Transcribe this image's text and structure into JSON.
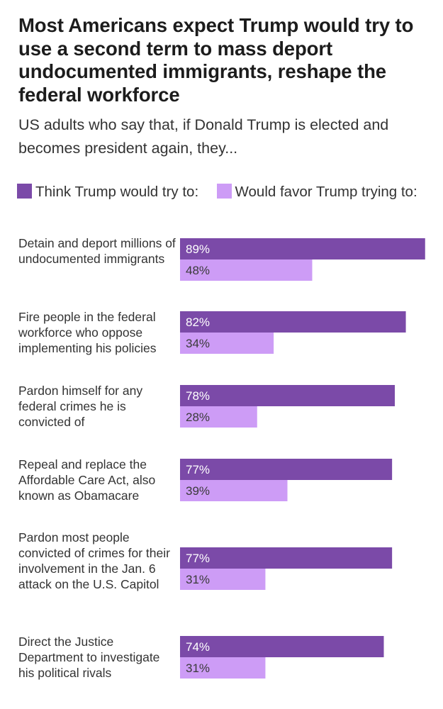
{
  "chart_data": {
    "type": "bar",
    "orientation": "horizontal",
    "title": "Most Americans expect Trump would try to use a second term to mass deport undocumented immigrants, reshape the federal workforce",
    "subtitle": "US adults who say that, if Donald Trump is elected and becomes president again, they...",
    "xlim": [
      0,
      100
    ],
    "value_suffix": "%",
    "categories": [
      "Detain and deport millions of undocumented immigrants",
      "Fire people in the federal workforce who oppose implementing his policies",
      "Pardon himself for any federal crimes he is convicted of",
      "Repeal and replace the Affordable Care Act, also known as Obamacare",
      "Pardon most people convicted of crimes for their involvement in the Jan. 6 attack on the U.S. Capitol",
      "Direct the Justice Department to investigate his political rivals"
    ],
    "series": [
      {
        "name": "Think Trump would try to:",
        "color": "#7b4aa8",
        "label_color": "#ffffff",
        "values": [
          89,
          82,
          78,
          77,
          77,
          74
        ]
      },
      {
        "name": "Would favor Trump trying to:",
        "color": "#cd9cf6",
        "label_color": "#3a3a3a",
        "values": [
          48,
          34,
          28,
          39,
          31,
          31
        ]
      }
    ]
  }
}
